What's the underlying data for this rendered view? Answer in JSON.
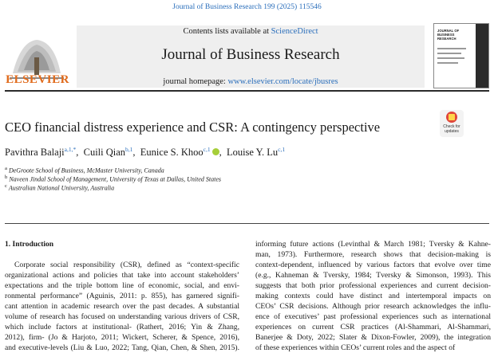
{
  "top_citation": "Journal of Business Research 199 (2025) 115546",
  "publisher": {
    "name": "ELSEVIER",
    "logo_icon": "elsevier-tree-logo"
  },
  "header": {
    "contents_prefix": "Contents lists available at ",
    "contents_link": "ScienceDirect",
    "journal_title": "Journal of Business Research",
    "homepage_prefix": "journal homepage: ",
    "homepage_link": "www.elsevier.com/locate/jbusres",
    "cover_title": "JOURNAL OF BUSINESS RESEARCH"
  },
  "article": {
    "title": "CEO financial distress experience and CSR: A contingency perspective",
    "badge": {
      "line1": "Check for",
      "line2": "updates",
      "icon": "check-for-updates-icon"
    },
    "authors": [
      {
        "name": "Pavithra Balaji",
        "sup": "a,1,*"
      },
      {
        "name": "Cuili Qian",
        "sup": "b,1"
      },
      {
        "name": "Eunice S. Khoo",
        "sup": "c,1"
      },
      {
        "name": "Louise Y. Lu",
        "sup": "c,1"
      }
    ],
    "affiliations": [
      {
        "sup": "a",
        "text": "DeGroote School of Business, McMaster University, Canada"
      },
      {
        "sup": "b",
        "text": "Naveen Jindal School of Management, University of Texas at Dallas, United States"
      },
      {
        "sup": "c",
        "text": "Australian National University, Australia"
      }
    ]
  },
  "body": {
    "section_heading": "1.  Introduction",
    "left_lines": [
      "Corporate social responsibility (CSR), defined as “context-specific",
      "organizational actions and policies that take into account stakeholders’",
      "expectations and the triple bottom line of economic, social, and envi-",
      "ronmental performance” (Aguinis, 2011: p. 855), has garnered signifi-",
      "cant attention in academic research over the past decades. A substantial",
      "volume of research has focused on understanding various drivers of CSR,",
      "which include factors at institutional- (Rathert, 2016; Yin & Zhang,",
      "2012), firm- (Jo & Harjoto, 2011; Wickert, Scherer, & Spence, 2016),",
      "and executive-levels (Liu & Luo, 2022; Tang, Qian, Chen, & Shen, 2015)."
    ],
    "right_lines": [
      "informing future actions (Levinthal & March 1981; Tversky & Kahne-",
      "man, 1973). Furthermore, research shows that decision-making is",
      "context-dependent, influenced by various factors that evolve over time",
      "(e.g., Kahneman & Tversky, 1984; Tversky & Simonson, 1993). This",
      "suggests that both prior professional experiences and current decision-",
      "making contexts could have distinct and intertemporal impacts on",
      "CEOs’ CSR decisions. Although prior research acknowledges the influ-",
      "ence of executives’ past professional experiences such as international",
      "experiences on current CSR practices (Al-Shammari, Al-Shammari,",
      "Banerjee & Doty, 2022; Slater & Dixon-Fowler, 2009), the integration",
      "of these experiences within CEOs’ current roles and the aspect of"
    ]
  }
}
